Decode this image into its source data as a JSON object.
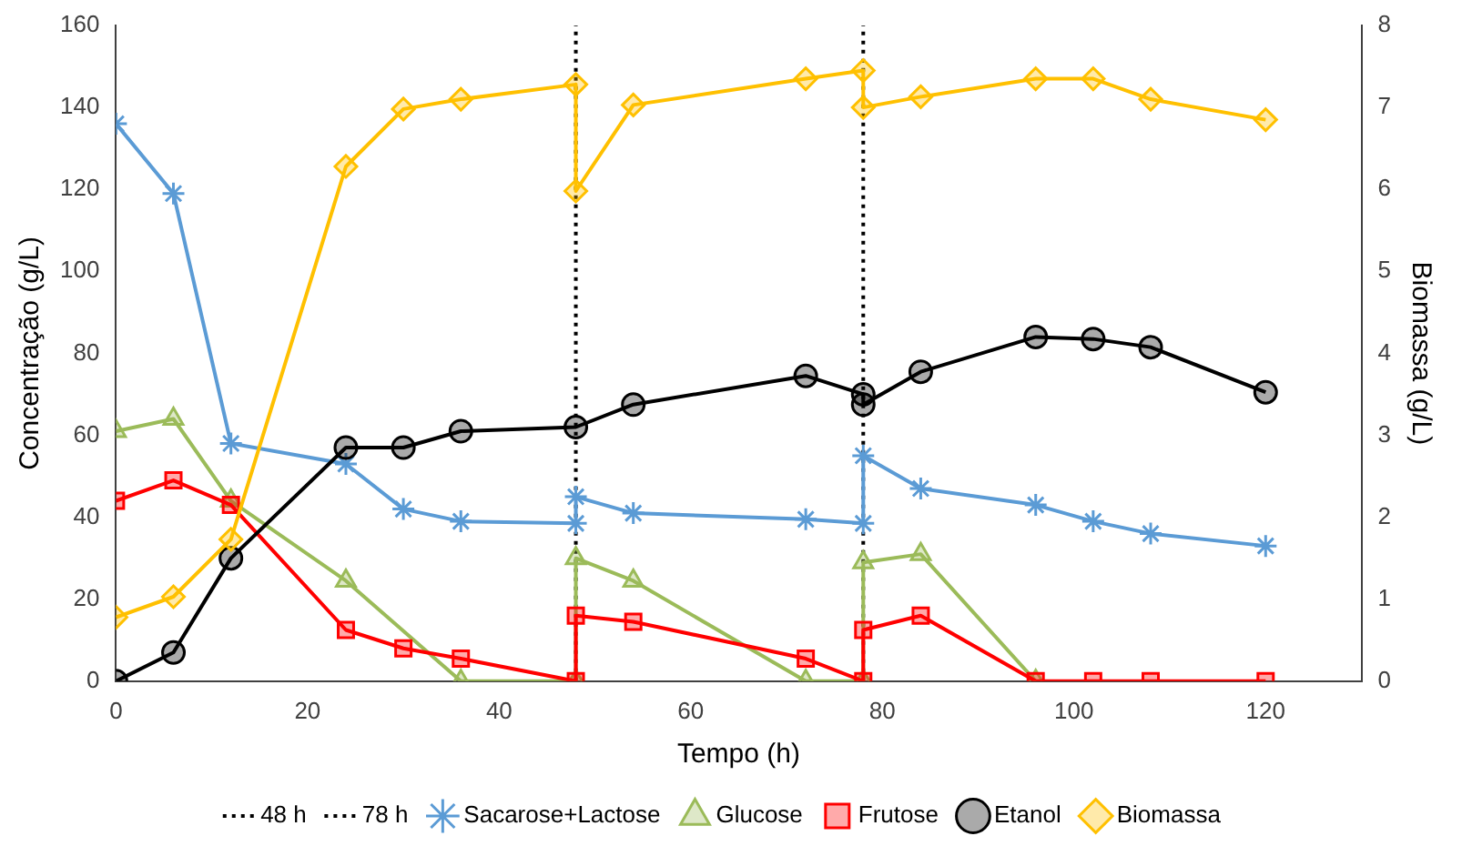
{
  "chart_data": {
    "type": "line",
    "xlabel": "Tempo (h)",
    "ylabel": "Concentração (g/L)",
    "y2label": "Biomassa (g/L)",
    "xlim": [
      0,
      130
    ],
    "xticks": [
      0,
      20,
      40,
      60,
      80,
      100,
      120
    ],
    "ylim": [
      0,
      160
    ],
    "yticks": [
      0,
      20,
      40,
      60,
      80,
      100,
      120,
      140,
      160
    ],
    "y2lim": [
      0,
      8
    ],
    "y2ticks": [
      0,
      1,
      2,
      3,
      4,
      5,
      6,
      7,
      8
    ],
    "grid": false,
    "legend": "bottom",
    "ref_lines": [
      {
        "axis": "x",
        "value": 48,
        "label": "48 h",
        "color": "#000000",
        "line_style": "dotted"
      },
      {
        "axis": "x",
        "value": 78,
        "label": "78 h",
        "color": "#000000",
        "line_style": "dotted"
      }
    ],
    "series": [
      {
        "name": "Sacarose+Lactose",
        "color": "#5b9bd5",
        "marker": "cross",
        "x": [
          0,
          6,
          12,
          24,
          30,
          36,
          48,
          48,
          54,
          72,
          78,
          78,
          84,
          96,
          102,
          108,
          120
        ],
        "values": [
          136,
          119,
          58,
          53,
          42,
          39,
          38.5,
          45,
          41,
          39.5,
          38.5,
          55,
          47,
          43,
          39,
          36,
          33
        ]
      },
      {
        "name": "Glucose",
        "color": "#9bbb59",
        "marker": "triangle",
        "x": [
          0,
          6,
          12,
          24,
          36,
          48,
          48,
          54,
          72,
          78,
          78,
          84,
          96
        ],
        "values": [
          61,
          64,
          44,
          24.5,
          0,
          0,
          30,
          24.5,
          0,
          0,
          29,
          31,
          0
        ]
      },
      {
        "name": "Frutose",
        "color": "#ff0000",
        "marker": "square",
        "x": [
          0,
          6,
          12,
          24,
          30,
          36,
          48,
          48,
          54,
          72,
          78,
          78,
          84,
          96,
          102,
          108,
          120
        ],
        "values": [
          44,
          49,
          43,
          12.5,
          8,
          5.5,
          0,
          16,
          14.5,
          5.5,
          0,
          12.5,
          16,
          0,
          0,
          0,
          0
        ]
      },
      {
        "name": "Etanol",
        "color": "#000000",
        "marker": "circle",
        "x": [
          0,
          6,
          12,
          24,
          30,
          36,
          48,
          54,
          72,
          78,
          78,
          84,
          96,
          102,
          108,
          120
        ],
        "values": [
          0,
          7,
          30,
          57,
          57,
          61,
          62,
          67.5,
          74.5,
          70,
          67.5,
          75.5,
          84,
          83.5,
          81.5,
          70.5
        ]
      },
      {
        "name": "Biomassa",
        "color": "#ffc000",
        "marker": "diamond",
        "axis": "y2",
        "x": [
          0,
          6,
          12,
          24,
          30,
          36,
          48,
          48,
          54,
          72,
          78,
          78,
          84,
          96,
          102,
          108,
          120
        ],
        "values": [
          0.78,
          1.03,
          1.73,
          6.28,
          6.98,
          7.1,
          7.28,
          5.98,
          7.03,
          7.35,
          7.45,
          7,
          7.13,
          7.35,
          7.35,
          7.1,
          6.85
        ]
      }
    ]
  }
}
